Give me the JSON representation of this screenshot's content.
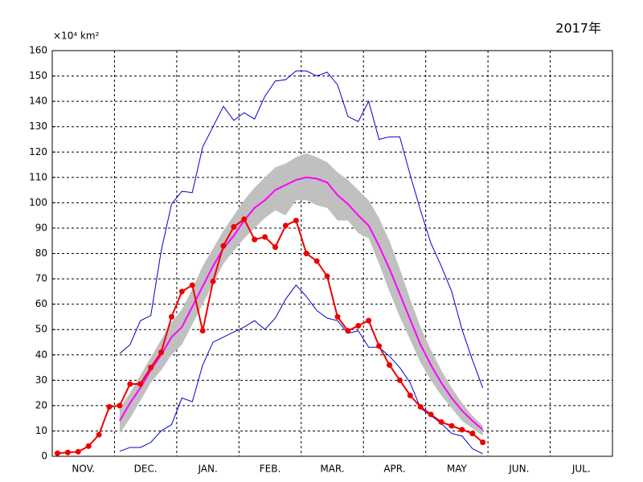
{
  "chart_data": {
    "type": "line",
    "title": "2017年",
    "y_unit": "×10⁴ km²",
    "categories": [
      null,
      null,
      null,
      "NOV.",
      null,
      null,
      null,
      null,
      null,
      "DEC.",
      null,
      null,
      null,
      null,
      null,
      "JAN.",
      null,
      null,
      null,
      null,
      null,
      "FEB.",
      null,
      null,
      null,
      null,
      null,
      "MAR.",
      null,
      null,
      null,
      null,
      null,
      "APR.",
      null,
      null,
      null,
      null,
      null,
      "MAY",
      null,
      null,
      null,
      null,
      null,
      "JUN.",
      null,
      null,
      null,
      null,
      null,
      "JUL.",
      null,
      null
    ],
    "ylim": [
      0,
      160
    ],
    "yticks": [
      0,
      10,
      20,
      30,
      40,
      50,
      60,
      70,
      80,
      90,
      100,
      110,
      120,
      130,
      140,
      150,
      160
    ],
    "grid": true,
    "band": {
      "color": "#c0c0c0",
      "high": [
        null,
        null,
        null,
        null,
        null,
        null,
        19,
        25,
        32,
        39,
        46,
        53,
        58,
        66,
        75,
        82,
        89,
        95,
        101,
        106,
        110,
        114,
        115.5,
        118,
        119.5,
        118,
        116,
        112,
        109,
        105,
        101,
        94,
        85,
        74,
        62,
        51,
        42,
        34,
        27,
        21,
        16,
        12,
        null,
        null,
        null,
        null,
        null,
        null,
        null,
        null,
        null,
        null,
        null,
        null
      ],
      "low": [
        null,
        null,
        null,
        null,
        null,
        null,
        9,
        15,
        22,
        29,
        34,
        40,
        44,
        52,
        60,
        68,
        76,
        81,
        86,
        90,
        94,
        97,
        95,
        101,
        101,
        99,
        98,
        93,
        93,
        88,
        86,
        76,
        65,
        55,
        46,
        37,
        30,
        24,
        19,
        14,
        11,
        8,
        null,
        null,
        null,
        null,
        null,
        null,
        null,
        null,
        null,
        null,
        null,
        null
      ]
    },
    "series": [
      {
        "color": "#0000cc",
        "markers": false,
        "width": 1,
        "values": [
          null,
          null,
          null,
          null,
          null,
          null,
          40.5,
          44,
          53.5,
          55.5,
          81,
          99.5,
          104.5,
          104,
          122,
          130,
          138,
          132.5,
          135.5,
          133,
          142,
          148,
          148.5,
          152,
          152,
          150,
          151.5,
          146.5,
          134,
          132,
          140,
          125,
          126,
          126,
          111,
          97,
          84,
          75,
          65,
          50,
          38,
          27,
          null,
          null,
          null,
          null,
          null,
          null,
          null,
          null,
          null,
          null,
          null,
          null
        ]
      },
      {
        "color": "#0000cc",
        "markers": false,
        "width": 1,
        "values": [
          null,
          null,
          null,
          null,
          null,
          null,
          2,
          3.5,
          3.5,
          5.5,
          10,
          12.5,
          23,
          21.5,
          36,
          45,
          47,
          49,
          51,
          53.5,
          50,
          54.5,
          62,
          67.5,
          63,
          57.5,
          54.5,
          53.5,
          48.5,
          49.5,
          43,
          43,
          39.5,
          35,
          29,
          19,
          16,
          13,
          9,
          8,
          3,
          1,
          null,
          null,
          null,
          null,
          null,
          null,
          null,
          null,
          null,
          null,
          null,
          null
        ]
      },
      {
        "color": "#ff00ff",
        "markers": false,
        "width": 2,
        "values": [
          null,
          null,
          null,
          null,
          null,
          null,
          14,
          21,
          27,
          34,
          40,
          47,
          51,
          59,
          67,
          75,
          82,
          87,
          93,
          98,
          101,
          105,
          107,
          109,
          110,
          109.5,
          108,
          103,
          99.5,
          95,
          91,
          83,
          74,
          64,
          54,
          44,
          36,
          29,
          23,
          18,
          14,
          10.5,
          null,
          null,
          null,
          null,
          null,
          null,
          null,
          null,
          null,
          null,
          null,
          null
        ]
      },
      {
        "color": "#ee0000",
        "markers": true,
        "width": 2,
        "values": [
          1.2,
          1.5,
          1.8,
          4,
          8.5,
          19.5,
          20,
          28.5,
          28.5,
          35,
          41,
          55,
          65,
          67.5,
          49.5,
          69,
          83,
          90.5,
          93.5,
          85.5,
          86.5,
          82.5,
          91,
          93,
          80,
          77,
          71,
          55,
          49.5,
          51.5,
          53.5,
          43.5,
          36,
          30,
          24,
          19.5,
          16.5,
          13.5,
          12,
          10.5,
          9,
          5.5,
          null,
          null,
          null,
          null,
          null,
          null,
          null,
          null,
          null,
          null,
          null,
          null
        ]
      }
    ]
  }
}
